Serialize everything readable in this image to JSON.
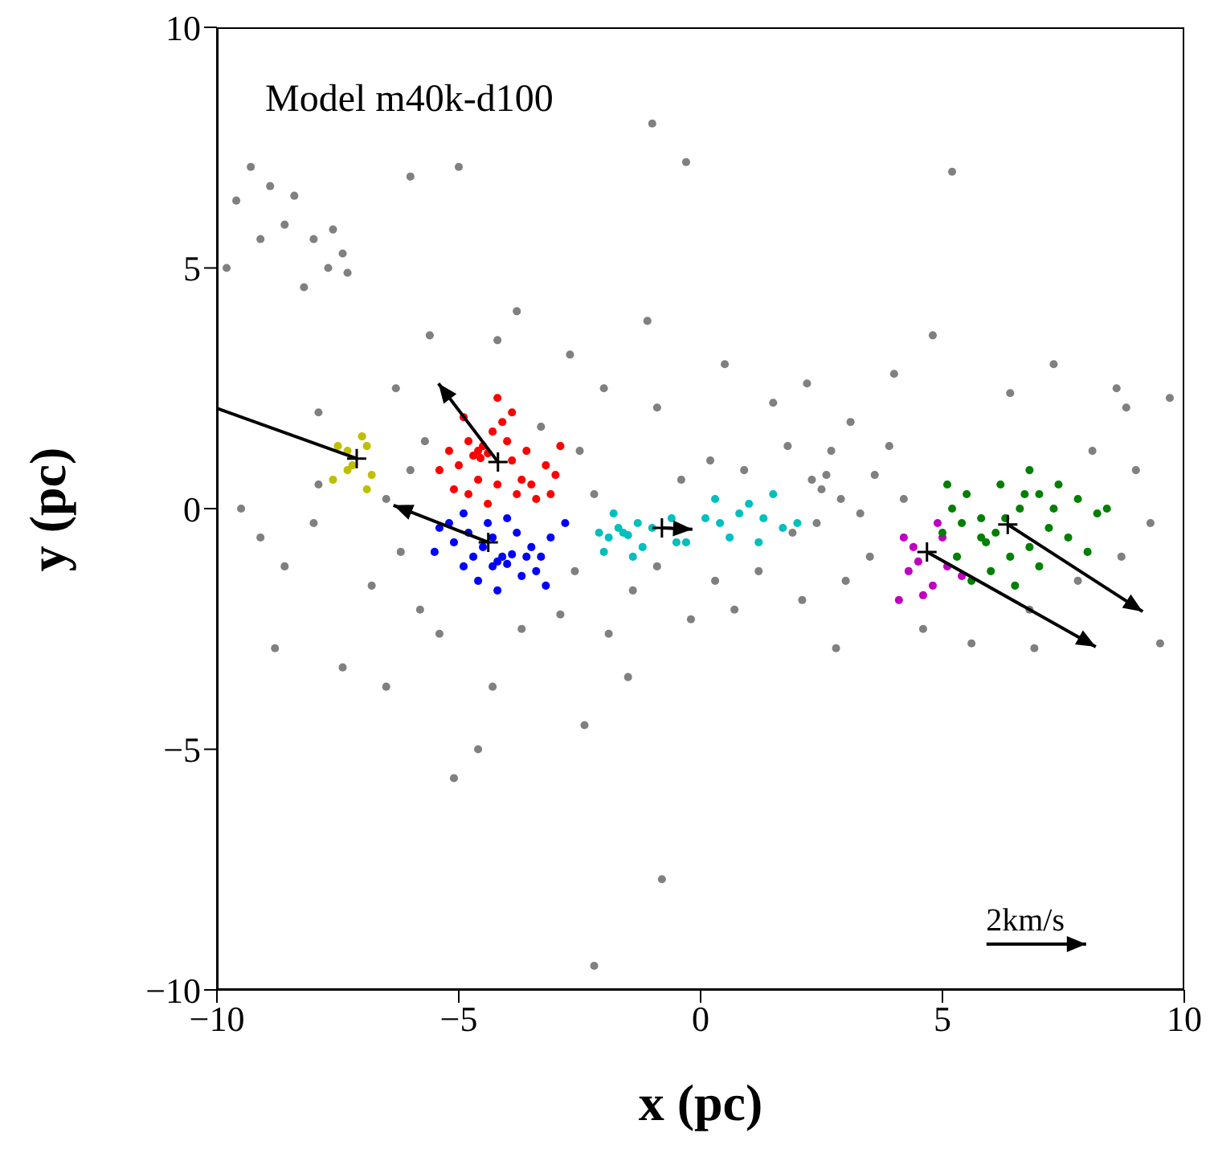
{
  "chart_data": {
    "type": "scatter",
    "title": "Model m40k-d100",
    "xlabel": "x (pc)",
    "ylabel": "y (pc)",
    "xlim": [
      -10,
      10
    ],
    "ylim": [
      -10,
      10
    ],
    "xticks": [
      -10,
      -5,
      0,
      5,
      10
    ],
    "yticks": [
      -10,
      -5,
      0,
      5,
      10
    ],
    "annotations": [
      "2km/s"
    ],
    "series": [
      {
        "type": "scatter",
        "color": "#808080",
        "marker": "circle",
        "x": [
          -9.3,
          -8.9,
          -8.4,
          -8.0,
          -7.6,
          -7.4,
          -7.7,
          -7.3,
          -8.6,
          -9.6,
          -9.1,
          -9.8,
          -8.2,
          -6.0,
          -5.0,
          -1.0,
          -0.3,
          5.2,
          8.6,
          8.8,
          -5.6,
          -4.2,
          -2.7,
          -1.1,
          -3.8,
          -6.3,
          -7.9,
          -2.0,
          -0.9,
          0.5,
          1.5,
          2.2,
          3.1,
          4.0,
          4.8,
          6.4,
          7.3,
          9.7,
          -9.5,
          -9.1,
          -8.6,
          -8.0,
          -7.9,
          -6.5,
          -6.2,
          -6.8,
          -5.8,
          -5.4,
          -5.7,
          -6.0,
          -3.3,
          -2.5,
          -2.2,
          -2.6,
          -2.9,
          -3.7,
          -1.4,
          -0.9,
          -0.4,
          0.2,
          0.9,
          1.8,
          2.3,
          2.5,
          2.6,
          2.7,
          2.9,
          2.4,
          1.9,
          3.3,
          3.6,
          3.9,
          4.2,
          3.5,
          3.0,
          2.1,
          1.2,
          0.3,
          0.7,
          -0.2,
          -1.9,
          4.6,
          5.6,
          6.8,
          7.8,
          8.7,
          9.3,
          9.0,
          8.1,
          -8.8,
          -7.4,
          -4.3,
          -1.5,
          2.8,
          6.9,
          9.5,
          -4.6,
          -5.1,
          -0.8,
          -2.2,
          -6.5,
          -2.4
        ],
        "values": [
          7.1,
          6.7,
          6.5,
          5.6,
          5.8,
          5.3,
          5.0,
          4.9,
          5.9,
          6.4,
          5.6,
          5.0,
          4.6,
          6.9,
          7.1,
          8.0,
          7.2,
          7.0,
          2.5,
          2.1,
          3.6,
          3.5,
          3.2,
          3.9,
          4.1,
          2.5,
          2.0,
          2.5,
          2.1,
          3.0,
          2.2,
          2.6,
          1.8,
          2.8,
          3.6,
          2.4,
          3.0,
          2.3,
          0.0,
          -0.6,
          -1.2,
          -0.3,
          0.5,
          0.2,
          -0.9,
          -1.6,
          -2.1,
          -2.6,
          1.4,
          0.8,
          1.7,
          1.2,
          0.3,
          -1.3,
          -2.2,
          -2.5,
          -1.7,
          -1.2,
          0.6,
          1.0,
          0.8,
          1.3,
          0.6,
          0.4,
          0.7,
          1.2,
          0.2,
          -0.3,
          -0.5,
          -0.1,
          0.7,
          1.3,
          0.2,
          -1.0,
          -1.5,
          -1.9,
          -1.3,
          -1.5,
          -2.1,
          -2.3,
          -2.6,
          -2.5,
          -2.8,
          -2.1,
          -1.5,
          -1.0,
          -0.3,
          0.8,
          1.2,
          -2.9,
          -3.3,
          -3.7,
          -3.5,
          -2.9,
          -2.9,
          -2.8,
          -5.0,
          -5.6,
          -7.7,
          -9.5,
          -3.7,
          -4.5
        ]
      },
      {
        "type": "scatter",
        "color": "#bfbf00",
        "marker": "circle",
        "x": [
          -7.3,
          -7.2,
          -6.9,
          -7.5,
          -6.8,
          -7.6,
          -6.9,
          -7.3,
          -7.0
        ],
        "values": [
          1.2,
          0.9,
          1.3,
          1.3,
          0.7,
          0.6,
          0.4,
          0.8,
          1.5
        ]
      },
      {
        "type": "scatter",
        "color": "#ff0000",
        "marker": "circle",
        "x": [
          -4.6,
          -4.5,
          -4.7,
          -4.4,
          -4.55,
          -4.8,
          -4.3,
          -4.1,
          -4.9,
          -4.2,
          -5.0,
          -5.2,
          -5.4,
          -3.9,
          -3.7,
          -3.5,
          -3.2,
          -3.0,
          -2.9,
          -3.4,
          -3.8,
          -4.2,
          -4.6,
          -4.0,
          -3.6,
          -5.1,
          -4.4,
          -3.1,
          -4.8,
          -3.9
        ],
        "values": [
          1.2,
          1.3,
          1.1,
          1.15,
          1.05,
          1.4,
          1.6,
          1.8,
          1.9,
          2.3,
          0.9,
          1.2,
          0.8,
          1.0,
          0.6,
          0.5,
          0.9,
          0.7,
          1.3,
          0.2,
          0.3,
          0.5,
          0.6,
          1.4,
          1.2,
          0.4,
          0.1,
          0.3,
          0.3,
          2.0
        ]
      },
      {
        "type": "scatter",
        "color": "#0000ff",
        "marker": "circle",
        "x": [
          -4.2,
          -4.1,
          -4.3,
          -4.0,
          -3.9,
          -4.5,
          -4.8,
          -5.2,
          -5.4,
          -5.1,
          -4.9,
          -4.6,
          -4.2,
          -3.7,
          -3.4,
          -3.5,
          -3.1,
          -2.8,
          -4.0,
          -4.4,
          -3.8,
          -4.7,
          -5.5,
          -3.2,
          -4.3,
          -3.6,
          -4.9,
          -3.3
        ],
        "values": [
          -1.1,
          -1.0,
          -1.2,
          -1.15,
          -0.95,
          -0.8,
          -0.5,
          -0.3,
          -0.4,
          -0.7,
          -1.2,
          -1.5,
          -1.7,
          -1.4,
          -1.3,
          -0.8,
          -0.6,
          -0.3,
          -0.2,
          -0.3,
          -0.5,
          -1.0,
          -0.9,
          -1.6,
          -0.6,
          -1.0,
          -0.1,
          -1.0
        ]
      },
      {
        "type": "scatter",
        "color": "#00bfbf",
        "marker": "circle",
        "x": [
          -1.6,
          -1.5,
          -1.7,
          -1.3,
          -1.9,
          -2.1,
          -1.2,
          -1.8,
          -1.0,
          -0.6,
          -0.5,
          -0.3,
          -2.0,
          -1.4,
          0.1,
          0.4,
          0.8,
          1.0,
          1.3,
          1.7,
          2.0,
          0.6,
          1.2,
          0.3,
          1.5
        ],
        "values": [
          -0.5,
          -0.55,
          -0.4,
          -0.3,
          -0.6,
          -0.5,
          -0.8,
          -0.1,
          -0.4,
          -0.2,
          -0.7,
          -0.7,
          -0.9,
          -1.0,
          -0.2,
          -0.3,
          -0.1,
          0.1,
          -0.2,
          -0.4,
          -0.3,
          -0.6,
          -0.7,
          0.2,
          0.3
        ]
      },
      {
        "type": "scatter",
        "color": "#bf00bf",
        "marker": "circle",
        "x": [
          4.5,
          4.3,
          4.8,
          4.2,
          4.9,
          4.6,
          4.1,
          5.1,
          5.4,
          4.4,
          5.0
        ],
        "values": [
          -1.1,
          -1.3,
          -1.6,
          -0.6,
          -0.3,
          -1.8,
          -1.9,
          -1.2,
          -1.4,
          -0.8,
          -0.6
        ]
      },
      {
        "type": "scatter",
        "color": "#008000",
        "marker": "circle",
        "x": [
          5.8,
          5.9,
          6.1,
          6.3,
          6.6,
          7.0,
          7.4,
          7.8,
          8.2,
          8.4,
          7.2,
          6.8,
          6.4,
          6.0,
          5.6,
          5.3,
          5.0,
          5.2,
          5.5,
          6.2,
          6.8,
          7.6,
          8.0,
          7.0,
          6.5,
          5.8,
          5.4,
          6.7,
          7.3,
          5.1
        ],
        "values": [
          -0.6,
          -0.7,
          -0.5,
          -0.2,
          0.0,
          0.3,
          0.5,
          0.2,
          -0.1,
          0.0,
          -0.4,
          -0.8,
          -1.0,
          -1.3,
          -1.5,
          -1.0,
          -0.5,
          0.0,
          0.3,
          0.5,
          0.8,
          -0.6,
          -0.9,
          -1.2,
          -1.6,
          -0.2,
          -0.3,
          0.3,
          0.0,
          0.5
        ]
      },
      {
        "type": "scatter",
        "color": "#000000",
        "marker": "cross",
        "x": [
          -7.11,
          -4.19,
          -4.39,
          -0.8,
          4.68,
          6.35
        ],
        "values": [
          1.04,
          0.97,
          -0.7,
          -0.4,
          -0.9,
          -0.33
        ]
      }
    ]
  }
}
